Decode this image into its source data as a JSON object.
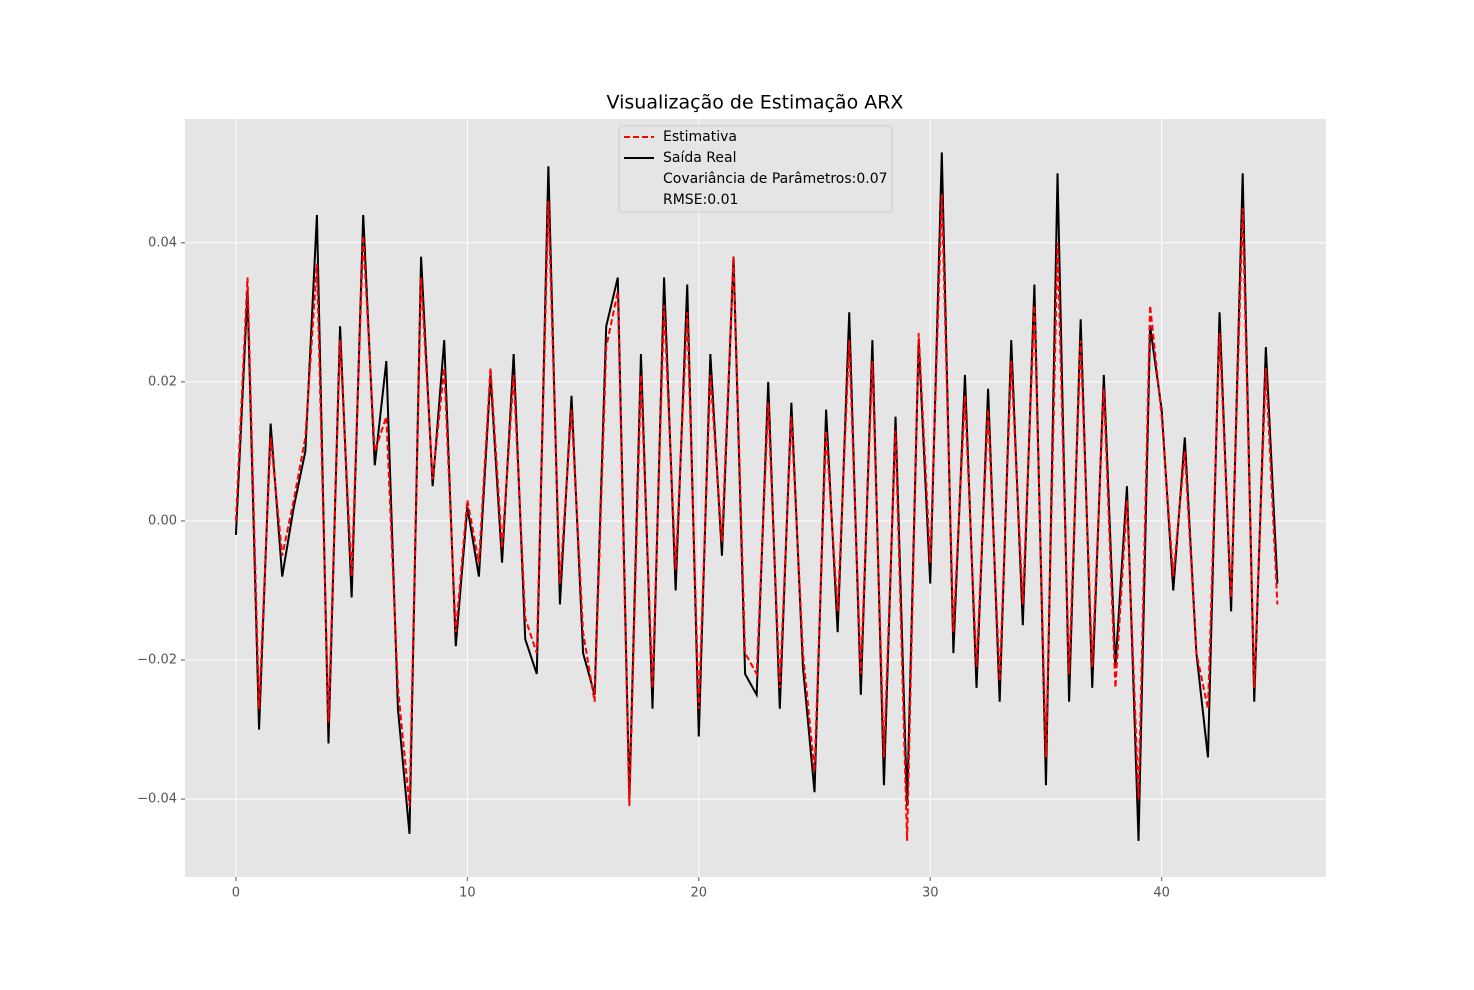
{
  "chart_data": {
    "type": "line",
    "title": "Visualização de Estimação ARX",
    "x": [
      0,
      0.5,
      1,
      1.5,
      2,
      2.5,
      3,
      3.5,
      4,
      4.5,
      5,
      5.5,
      6,
      6.5,
      7,
      7.5,
      8,
      8.5,
      9,
      9.5,
      10,
      10.5,
      11,
      11.5,
      12,
      12.5,
      13,
      13.5,
      14,
      14.5,
      15,
      15.5,
      16,
      16.5,
      17,
      17.5,
      18,
      18.5,
      19,
      19.5,
      20,
      20.5,
      21,
      21.5,
      22,
      22.5,
      23,
      23.5,
      24,
      24.5,
      25,
      25.5,
      26,
      26.5,
      27,
      27.5,
      28,
      28.5,
      29,
      29.5,
      30,
      30.5,
      31,
      31.5,
      32,
      32.5,
      33,
      33.5,
      34,
      34.5,
      35,
      35.5,
      36,
      36.5,
      37,
      37.5,
      38,
      38.5,
      39,
      39.5,
      40,
      40.5,
      41,
      41.5,
      42,
      42.5,
      43,
      43.5,
      44,
      44.5,
      45
    ],
    "series": [
      {
        "name": "Estimativa",
        "color": "#ff0000",
        "dashed": true,
        "values": [
          0.0,
          0.035,
          -0.027,
          0.012,
          -0.005,
          0.003,
          0.012,
          0.037,
          -0.029,
          0.026,
          -0.008,
          0.041,
          0.01,
          0.015,
          -0.024,
          -0.041,
          0.035,
          0.006,
          0.022,
          -0.016,
          0.003,
          -0.006,
          0.022,
          -0.004,
          0.021,
          -0.014,
          -0.019,
          0.046,
          -0.009,
          0.016,
          -0.016,
          -0.026,
          0.025,
          0.033,
          -0.041,
          0.021,
          -0.024,
          0.031,
          -0.007,
          0.03,
          -0.027,
          0.021,
          -0.003,
          0.038,
          -0.019,
          -0.022,
          0.017,
          -0.024,
          0.015,
          -0.019,
          -0.036,
          0.013,
          -0.013,
          0.026,
          -0.022,
          0.023,
          -0.034,
          0.013,
          -0.046,
          0.027,
          -0.006,
          0.047,
          -0.016,
          0.018,
          -0.021,
          0.016,
          -0.023,
          0.023,
          -0.012,
          0.031,
          -0.034,
          0.04,
          -0.022,
          0.026,
          -0.021,
          0.019,
          -0.024,
          0.003,
          -0.04,
          0.031,
          0.015,
          -0.008,
          0.01,
          -0.019,
          -0.027,
          0.027,
          -0.011,
          0.045,
          -0.024,
          0.022,
          -0.012
        ]
      },
      {
        "name": "Saída Real",
        "color": "#000000",
        "dashed": false,
        "values": [
          -0.002,
          0.033,
          -0.03,
          0.014,
          -0.008,
          0.002,
          0.01,
          0.044,
          -0.032,
          0.028,
          -0.011,
          0.044,
          0.008,
          0.023,
          -0.027,
          -0.045,
          0.038,
          0.005,
          0.026,
          -0.018,
          0.002,
          -0.008,
          0.021,
          -0.006,
          0.024,
          -0.017,
          -0.022,
          0.051,
          -0.012,
          0.018,
          -0.019,
          -0.025,
          0.028,
          0.035,
          -0.04,
          0.024,
          -0.027,
          0.035,
          -0.01,
          0.034,
          -0.031,
          0.024,
          -0.005,
          0.038,
          -0.022,
          -0.025,
          0.02,
          -0.027,
          0.017,
          -0.021,
          -0.039,
          0.016,
          -0.016,
          0.03,
          -0.025,
          0.026,
          -0.038,
          0.015,
          -0.041,
          0.026,
          -0.009,
          0.053,
          -0.019,
          0.021,
          -0.024,
          0.019,
          -0.026,
          0.026,
          -0.015,
          0.034,
          -0.038,
          0.05,
          -0.026,
          0.029,
          -0.024,
          0.021,
          -0.021,
          0.005,
          -0.046,
          0.028,
          0.016,
          -0.01,
          0.012,
          -0.019,
          -0.034,
          0.03,
          -0.013,
          0.05,
          -0.026,
          0.025,
          -0.009
        ]
      }
    ],
    "annotations": [
      "Covariância de Parâmetros:0.07",
      "RMSE:0.01"
    ],
    "xlim": [
      -2.2,
      47.1
    ],
    "ylim": [
      -0.0512,
      0.0578
    ],
    "xticks": [
      0,
      10,
      20,
      30,
      40
    ],
    "yticks": [
      {
        "value": -0.04,
        "label": "−0.04"
      },
      {
        "value": -0.02,
        "label": "−0.02"
      },
      {
        "value": 0,
        "label": "0.00"
      },
      0.02,
      0.04
    ],
    "grid": true,
    "legend": "upper center"
  }
}
